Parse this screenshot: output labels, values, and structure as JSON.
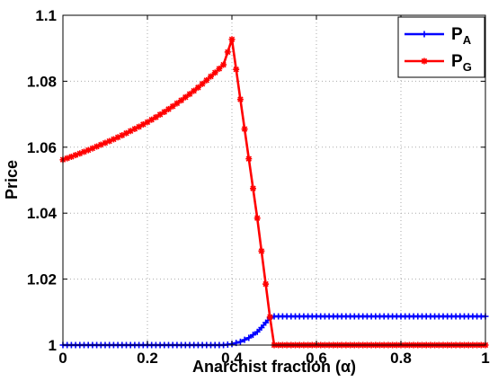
{
  "chart_data": {
    "type": "line",
    "xlabel": "Anarchist fraction (α)",
    "ylabel": "Price",
    "xlim": [
      0,
      1
    ],
    "ylim": [
      1,
      1.1
    ],
    "xticks": [
      "0",
      "0.2",
      "0.4",
      "0.6",
      "0.8",
      "1"
    ],
    "yticks": [
      "1",
      "1.02",
      "1.04",
      "1.06",
      "1.08",
      "1.1"
    ],
    "grid": true,
    "legend_position": "top-right",
    "series": [
      {
        "name": "P_A",
        "legend_main": "P",
        "legend_sub": "A",
        "color": "#0000ff",
        "marker": "plus",
        "x": [
          0,
          0.05,
          0.1,
          0.15,
          0.2,
          0.25,
          0.3,
          0.35,
          0.38,
          0.4,
          0.42,
          0.44,
          0.46,
          0.47,
          0.48,
          0.49,
          0.5,
          0.55,
          0.6,
          0.65,
          0.7,
          0.75,
          0.8,
          0.85,
          0.9,
          0.95,
          1.0
        ],
        "y": [
          1.0,
          1.0,
          1.0,
          1.0,
          1.0,
          1.0,
          1.0,
          1.0,
          1.0,
          1.0003,
          1.001,
          1.0022,
          1.004,
          1.0053,
          1.0068,
          1.0082,
          1.0087,
          1.0087,
          1.0087,
          1.0087,
          1.0087,
          1.0087,
          1.0087,
          1.0087,
          1.0087,
          1.0087,
          1.0087
        ]
      },
      {
        "name": "P_G",
        "legend_main": "P",
        "legend_sub": "G",
        "color": "#ff0000",
        "marker": "star",
        "x": [
          0,
          0.02,
          0.04,
          0.06,
          0.08,
          0.1,
          0.12,
          0.14,
          0.16,
          0.18,
          0.2,
          0.22,
          0.24,
          0.26,
          0.28,
          0.3,
          0.32,
          0.34,
          0.36,
          0.38,
          0.4,
          0.42,
          0.44,
          0.46,
          0.48,
          0.49,
          0.5,
          0.55,
          0.6,
          0.65,
          0.7,
          0.75,
          0.8,
          0.85,
          0.9,
          0.95,
          1.0
        ],
        "y": [
          1.0562,
          1.0571,
          1.0581,
          1.0591,
          1.0602,
          1.0613,
          1.0624,
          1.0636,
          1.0649,
          1.0662,
          1.0676,
          1.0691,
          1.0707,
          1.0724,
          1.0742,
          1.0761,
          1.0781,
          1.0803,
          1.0826,
          1.085,
          1.0927,
          1.0745,
          1.0565,
          1.0385,
          1.0185,
          1.0085,
          1.0,
          1.0,
          1.0,
          1.0,
          1.0,
          1.0,
          1.0,
          1.0,
          1.0,
          1.0,
          1.0
        ]
      }
    ]
  }
}
